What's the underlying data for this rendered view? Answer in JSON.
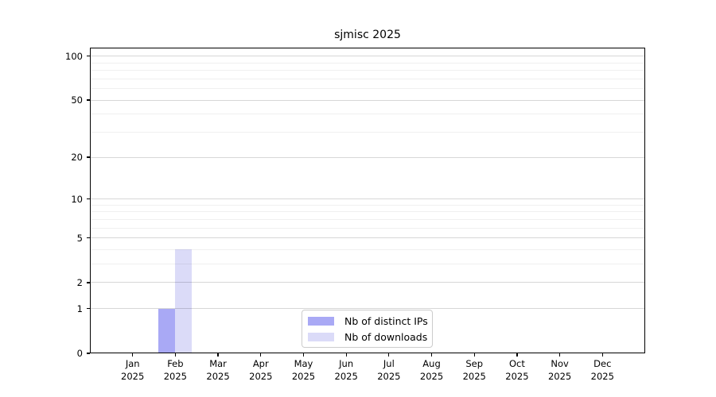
{
  "title": "sjmisc 2025",
  "chart_data": {
    "type": "bar",
    "title": "sjmisc 2025",
    "categories": [
      "Jan",
      "Feb",
      "Mar",
      "Apr",
      "May",
      "Jun",
      "Jul",
      "Aug",
      "Sep",
      "Oct",
      "Nov",
      "Dec"
    ],
    "x_year_label": "2025",
    "series": [
      {
        "name": "Nb of distinct IPs",
        "color": "#a9a9f5",
        "values": [
          0,
          1,
          0,
          0,
          0,
          0,
          0,
          0,
          0,
          0,
          0,
          0
        ]
      },
      {
        "name": "Nb of downloads",
        "color": "#dbdbf8",
        "values": [
          0,
          4,
          0,
          0,
          0,
          0,
          0,
          0,
          0,
          0,
          0,
          0
        ]
      }
    ],
    "yscale": "log1p",
    "ylim": [
      0,
      115
    ],
    "yticks": [
      0,
      1,
      2,
      5,
      10,
      20,
      50,
      100
    ],
    "minor_yticks": [
      3,
      4,
      6,
      7,
      8,
      9,
      30,
      40,
      60,
      70,
      80,
      90
    ],
    "grid": "horizontal-only",
    "legend_position": "lower-center",
    "axis_color": "#000000",
    "major_grid_color": "#d9d9d9",
    "minor_grid_color": "#f0f0f0"
  }
}
